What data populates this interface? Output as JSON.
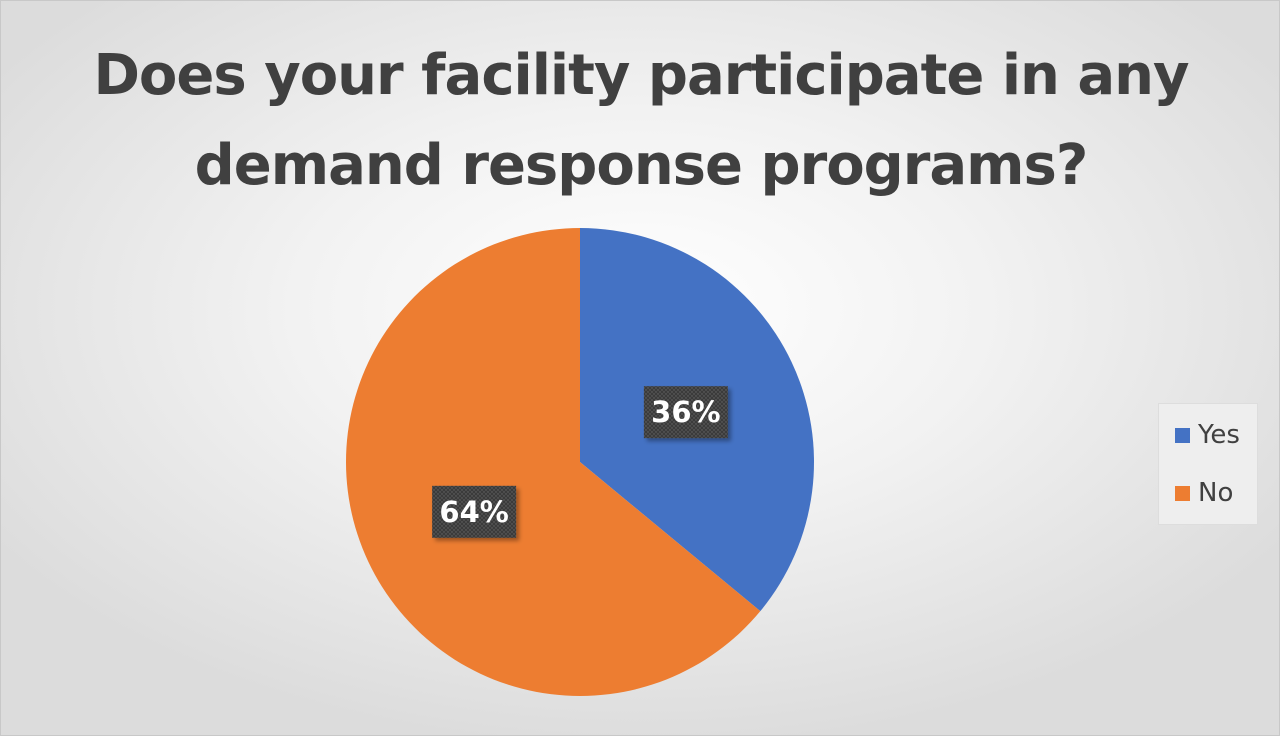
{
  "chart_data": {
    "type": "pie",
    "title": "Does your facility participate in any demand response programs?",
    "categories": [
      "Yes",
      "No"
    ],
    "values": [
      36,
      64
    ],
    "data_labels": [
      "36%",
      "64%"
    ],
    "colors": [
      "#4472C4",
      "#ED7D31"
    ],
    "start_angle": "12 o'clock",
    "direction": "clockwise",
    "legend_position": "right"
  }
}
